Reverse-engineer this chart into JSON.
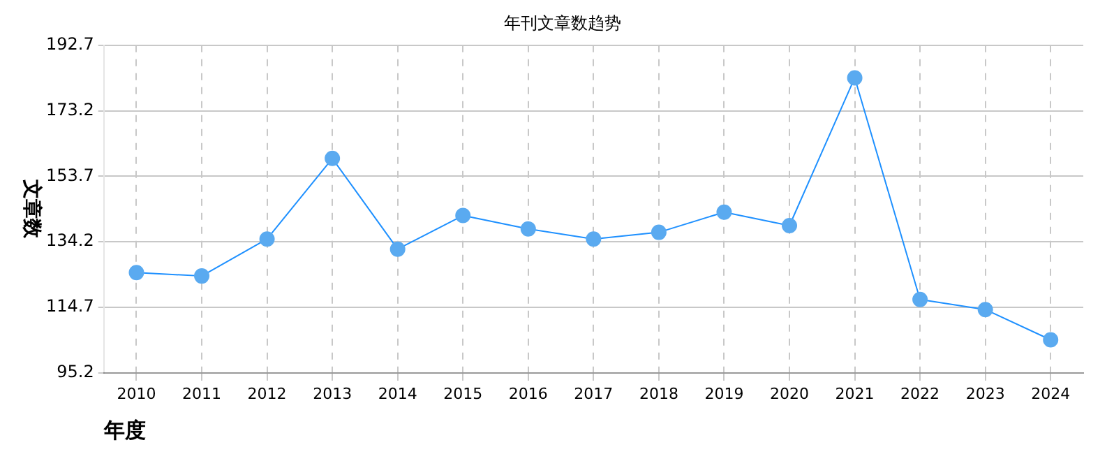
{
  "chart_data": {
    "type": "line",
    "title": "年刊文章数趋势",
    "xlabel": "年度",
    "ylabel": "文章数",
    "categories": [
      "2010",
      "2011",
      "2012",
      "2013",
      "2014",
      "2015",
      "2016",
      "2017",
      "2018",
      "2019",
      "2020",
      "2021",
      "2022",
      "2023",
      "2024"
    ],
    "series": [
      {
        "color": "#1e90ff",
        "values": [
          125,
          124,
          135,
          159,
          132,
          142,
          138,
          135,
          137,
          143,
          139,
          183,
          117,
          114,
          105
        ]
      }
    ],
    "ylim": [
      95.2,
      192.7
    ],
    "yticks": [
      95.2,
      114.7,
      134.2,
      153.7,
      173.2,
      192.7
    ],
    "grid": true,
    "marker": "circle",
    "line_style": "solid"
  }
}
